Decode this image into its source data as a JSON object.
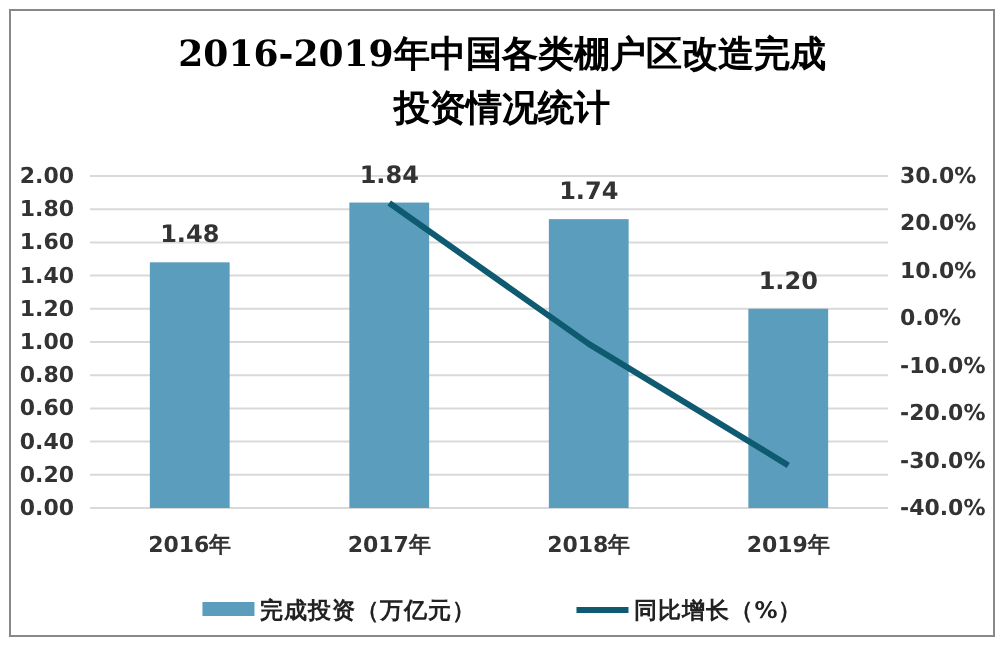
{
  "chart_data": {
    "type": "bar",
    "title": "2016-2019年中国各类棚户区改造完成投资情况统计",
    "categories": [
      "2016年",
      "2017年",
      "2018年",
      "2019年"
    ],
    "series": [
      {
        "name": "完成投资（万亿元）",
        "color": "#5b9dbd",
        "values": [
          1.48,
          1.84,
          1.74,
          1.2
        ],
        "value_labels": [
          "1.48",
          "1.84",
          "1.74",
          "1.20"
        ]
      },
      {
        "name": "同比增长（%）",
        "type": "line",
        "axis": "y2",
        "color": "#0e5a70",
        "values": [
          null,
          24.3,
          -5.4,
          -31.0
        ]
      }
    ],
    "ylim": [
      0,
      2
    ],
    "yticks": [
      {
        "value": 0,
        "label": "0.00"
      },
      {
        "value": 0.2,
        "label": "0.20"
      },
      {
        "value": 0.4,
        "label": "0.40"
      },
      {
        "value": 0.6,
        "label": "0.60"
      },
      {
        "value": 0.8,
        "label": "0.80"
      },
      {
        "value": 1,
        "label": "1.00"
      },
      {
        "value": 1.2,
        "label": "1.20"
      },
      {
        "value": 1.4,
        "label": "1.40"
      },
      {
        "value": 1.6,
        "label": "1.60"
      },
      {
        "value": 1.8,
        "label": "1.80"
      },
      {
        "value": 2,
        "label": "2.00"
      }
    ],
    "y2lim": [
      -40,
      30
    ],
    "y2ticks": [
      {
        "value": -40,
        "label": "-40.0%"
      },
      {
        "value": -30,
        "label": "-30.0%"
      },
      {
        "value": -20,
        "label": "-20.0%"
      },
      {
        "value": -10,
        "label": "-10.0%"
      },
      {
        "value": 0,
        "label": "0.0%"
      },
      {
        "value": 10,
        "label": "10.0%"
      },
      {
        "value": 20,
        "label": "20.0%"
      },
      {
        "value": 30,
        "label": "30.0%"
      }
    ],
    "grid": "y",
    "legend": "bottom",
    "marker": "none"
  }
}
